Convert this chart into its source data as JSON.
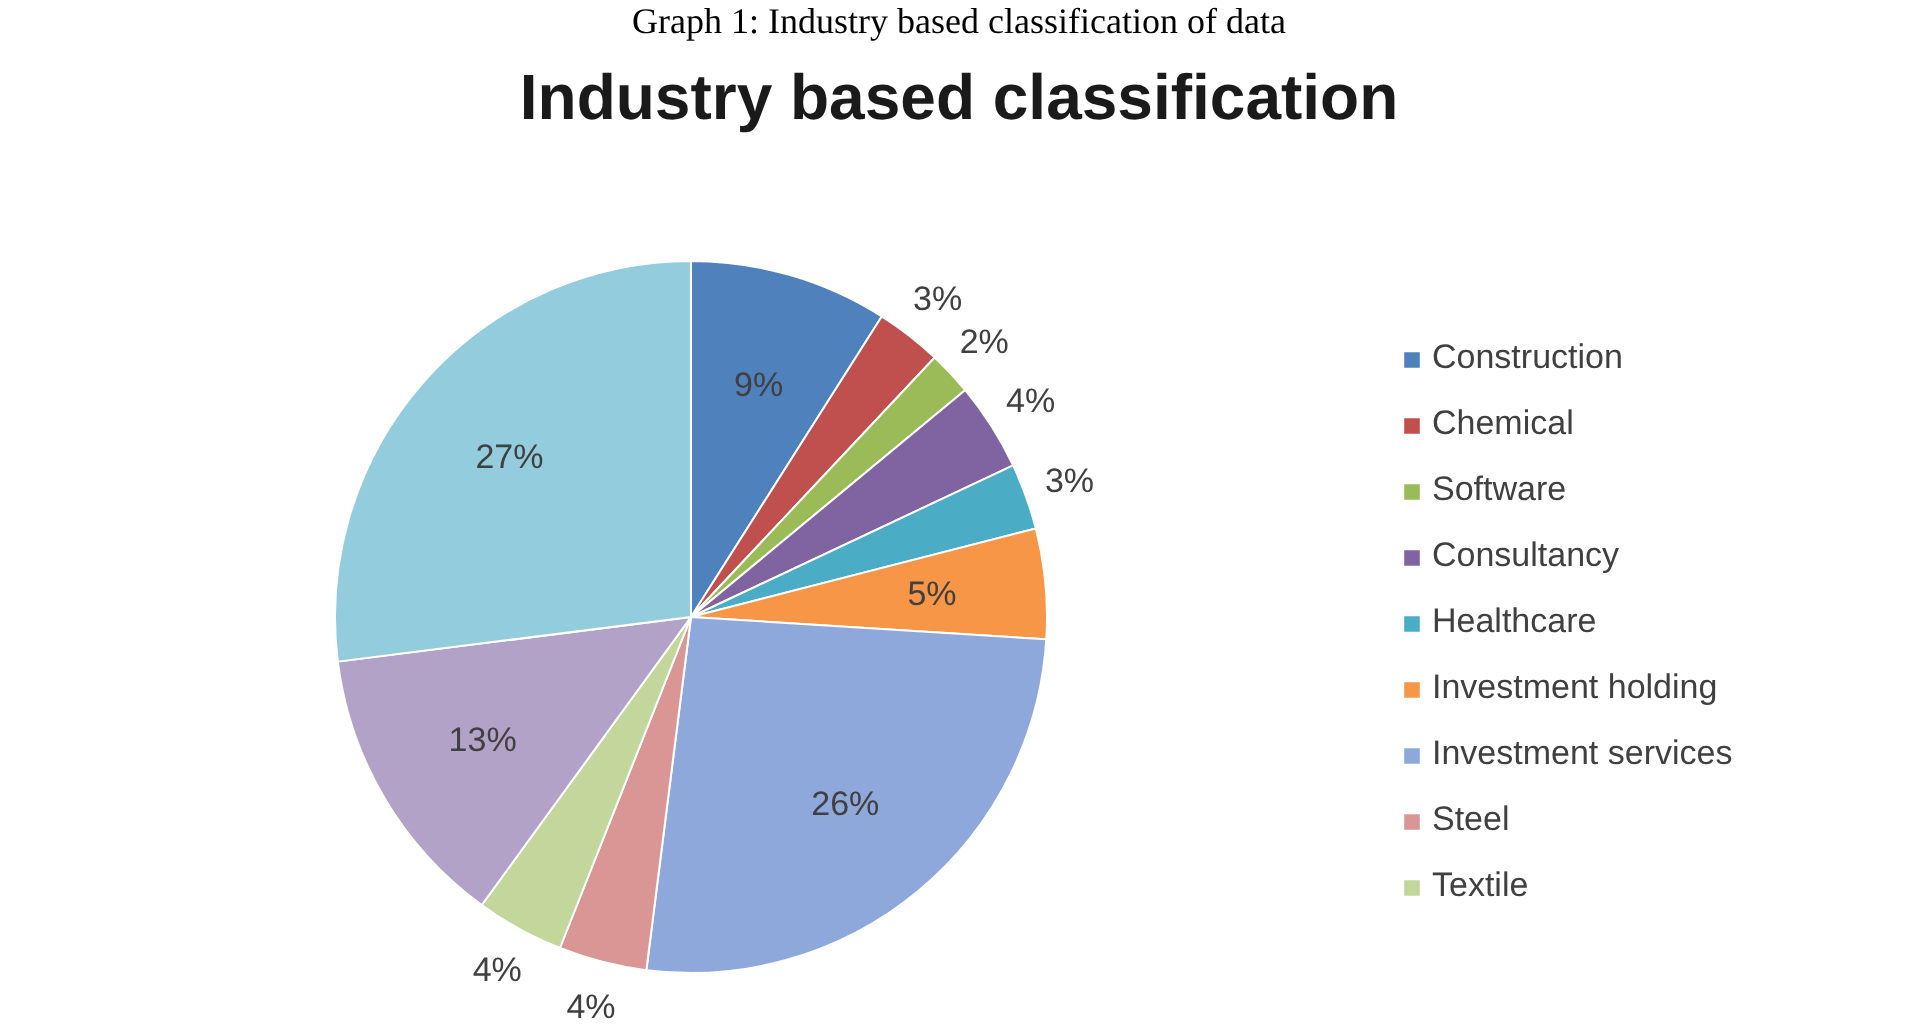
{
  "chart_data": {
    "type": "pie",
    "title": "Industry based classification",
    "annotations": [
      "Graph 1: Industry based classification of data"
    ],
    "categories": [
      "Construction",
      "Chemical",
      "Software",
      "Consultancy",
      "Healthcare",
      "Investment holding",
      "Investment services",
      "Steel",
      "Textile",
      null,
      null
    ],
    "values": [
      9,
      3,
      2,
      4,
      3,
      5,
      26,
      4,
      4,
      13,
      27
    ],
    "value_labels": [
      "9%",
      "3%",
      "2%",
      "4%",
      "3%",
      "5%",
      "26%",
      "4%",
      "4%",
      "13%",
      "27%"
    ],
    "colors": [
      "#4f81bd",
      "#c0504d",
      "#9bbb59",
      "#8064a2",
      "#4bacc6",
      "#f79646",
      "#8fa8dc",
      "#d99694",
      "#c3d69b",
      "#b3a2c7",
      "#93cddd"
    ],
    "legend": "right"
  }
}
